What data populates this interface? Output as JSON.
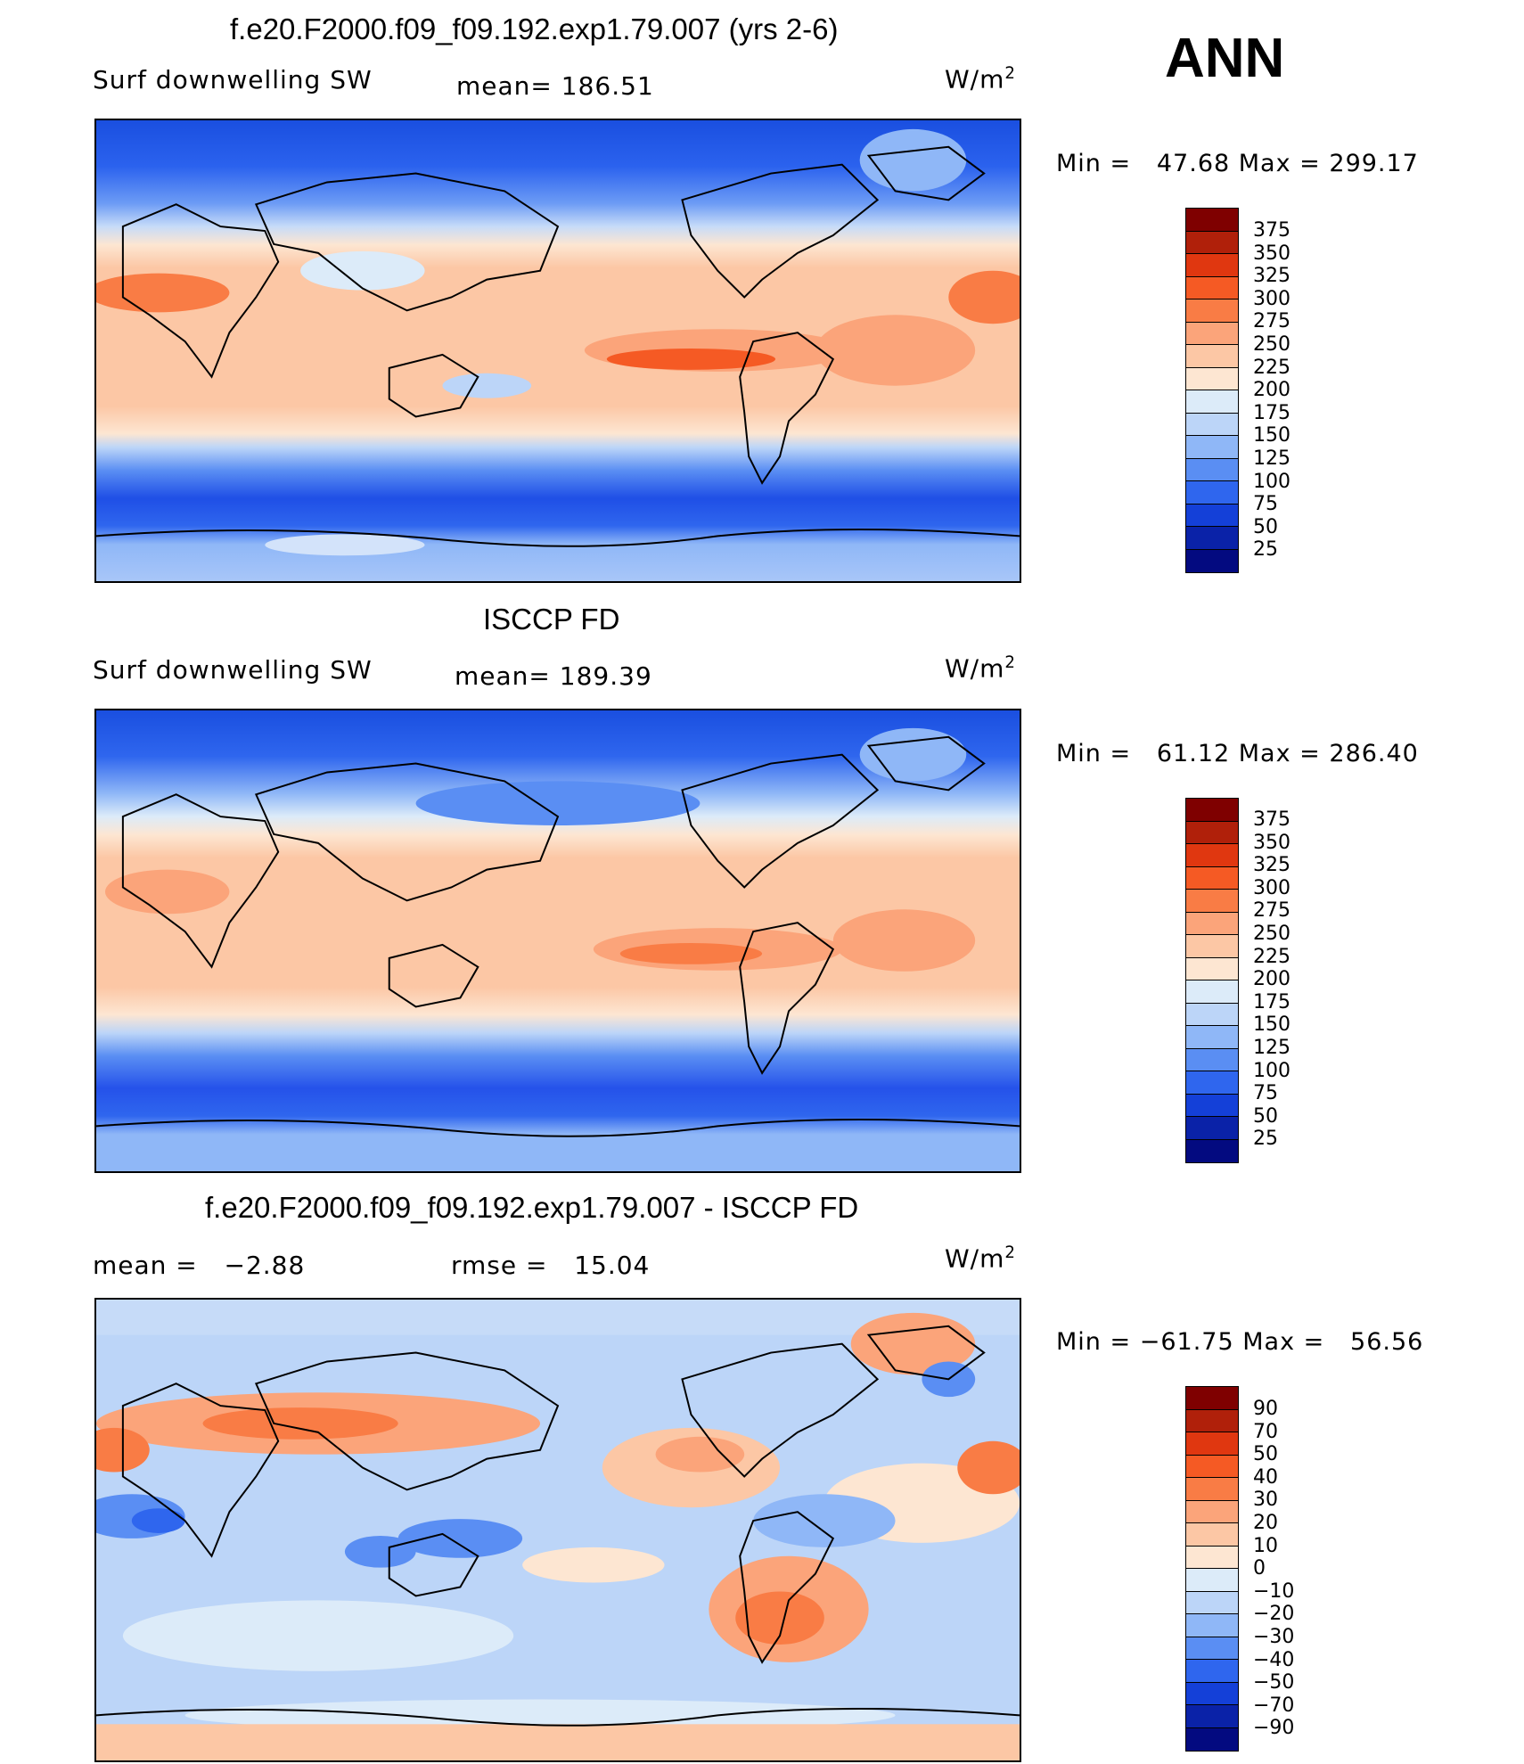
{
  "header": {
    "season": "ANN"
  },
  "units": "W/m",
  "units_exp": "2",
  "panels": [
    {
      "title": "f.e20.F2000.f09_f09.192.exp1.79.007 (yrs 2-6)",
      "variable": "Surf downwelling SW",
      "stat_label": "mean=",
      "stat_value": "186.51",
      "min_text": "Min =",
      "min_value": "47.68",
      "max_text": "Max =",
      "max_value": "299.17",
      "legend_levels": [
        "375",
        "350",
        "325",
        "300",
        "275",
        "250",
        "225",
        "200",
        "175",
        "150",
        "125",
        "100",
        "75",
        "50",
        "25"
      ]
    },
    {
      "title": "ISCCP FD",
      "variable": "Surf downwelling SW",
      "stat_label": "mean=",
      "stat_value": "189.39",
      "min_text": "Min =",
      "min_value": "61.12",
      "max_text": "Max =",
      "max_value": "286.40",
      "legend_levels": [
        "375",
        "350",
        "325",
        "300",
        "275",
        "250",
        "225",
        "200",
        "175",
        "150",
        "125",
        "100",
        "75",
        "50",
        "25"
      ]
    },
    {
      "title": "f.e20.F2000.f09_f09.192.exp1.79.007 - ISCCP FD",
      "mean_label": "mean =",
      "mean_value": "−2.88",
      "rmse_label": "rmse =",
      "rmse_value": "15.04",
      "min_text": "Min =",
      "min_value": "−61.75",
      "max_text": "Max =",
      "max_value": "56.56",
      "legend_levels": [
        "90",
        "70",
        "50",
        "40",
        "30",
        "20",
        "10",
        "0",
        "−10",
        "−20",
        "−30",
        "−40",
        "−50",
        "−70",
        "−90"
      ]
    }
  ],
  "colors": {
    "abs_scale": [
      "#7f0000",
      "#b0200a",
      "#e03710",
      "#f55a24",
      "#f97c45",
      "#fba47a",
      "#fcc7a5",
      "#fde6d2",
      "#dcebf9",
      "#bcd5f8",
      "#8fb7f7",
      "#5a8ef3",
      "#2f66ee",
      "#1440d8",
      "#0a22a8",
      "#030a80"
    ],
    "diff_scale": [
      "#7f0000",
      "#b0200a",
      "#e03710",
      "#f55a24",
      "#f97c45",
      "#fba47a",
      "#fcc7a5",
      "#fde6d2",
      "#dcebf9",
      "#bcd5f8",
      "#8fb7f7",
      "#5a8ef3",
      "#2f66ee",
      "#1440d8",
      "#0a22a8",
      "#030a80"
    ]
  }
}
